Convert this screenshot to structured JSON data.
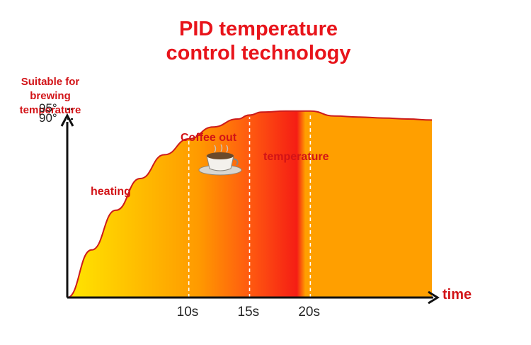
{
  "chart_data": {
    "type": "area",
    "title": "PID temperature",
    "subtitle": "control technology",
    "ylabel": "Suitable for\nbrewing\ntemperature",
    "xlabel": "time",
    "x_ticks": [
      {
        "label": "10s",
        "x": 10
      },
      {
        "label": "15s",
        "x": 15
      },
      {
        "label": "20s",
        "x": 20
      }
    ],
    "y_ticks": [
      {
        "label": "95°",
        "y": 95
      },
      {
        "label": "90°",
        "y": 90
      }
    ],
    "annotations": {
      "heating": "heating",
      "coffee_out": "Coffee out",
      "temperature": "temperature"
    },
    "xlim": [
      0,
      30
    ],
    "ylim": [
      0,
      100
    ],
    "series": [
      {
        "x": [
          0,
          2,
          4,
          6,
          8,
          10,
          12,
          14,
          15,
          16,
          18,
          20,
          22,
          24,
          26,
          28,
          30
        ],
        "values": [
          0,
          24,
          44,
          60,
          72,
          80,
          86,
          90,
          92,
          93.5,
          94,
          94,
          91.5,
          91,
          90.5,
          90,
          89.5
        ]
      }
    ],
    "colors": {
      "title": "#e8141b",
      "label": "#d21317",
      "curve": "#cc1b1b",
      "fill_start": "#ffe600",
      "fill_mid": "#ff9a00",
      "fill_peak": "#f51d14",
      "fill_end": "#ff9f00"
    },
    "grid": false
  }
}
